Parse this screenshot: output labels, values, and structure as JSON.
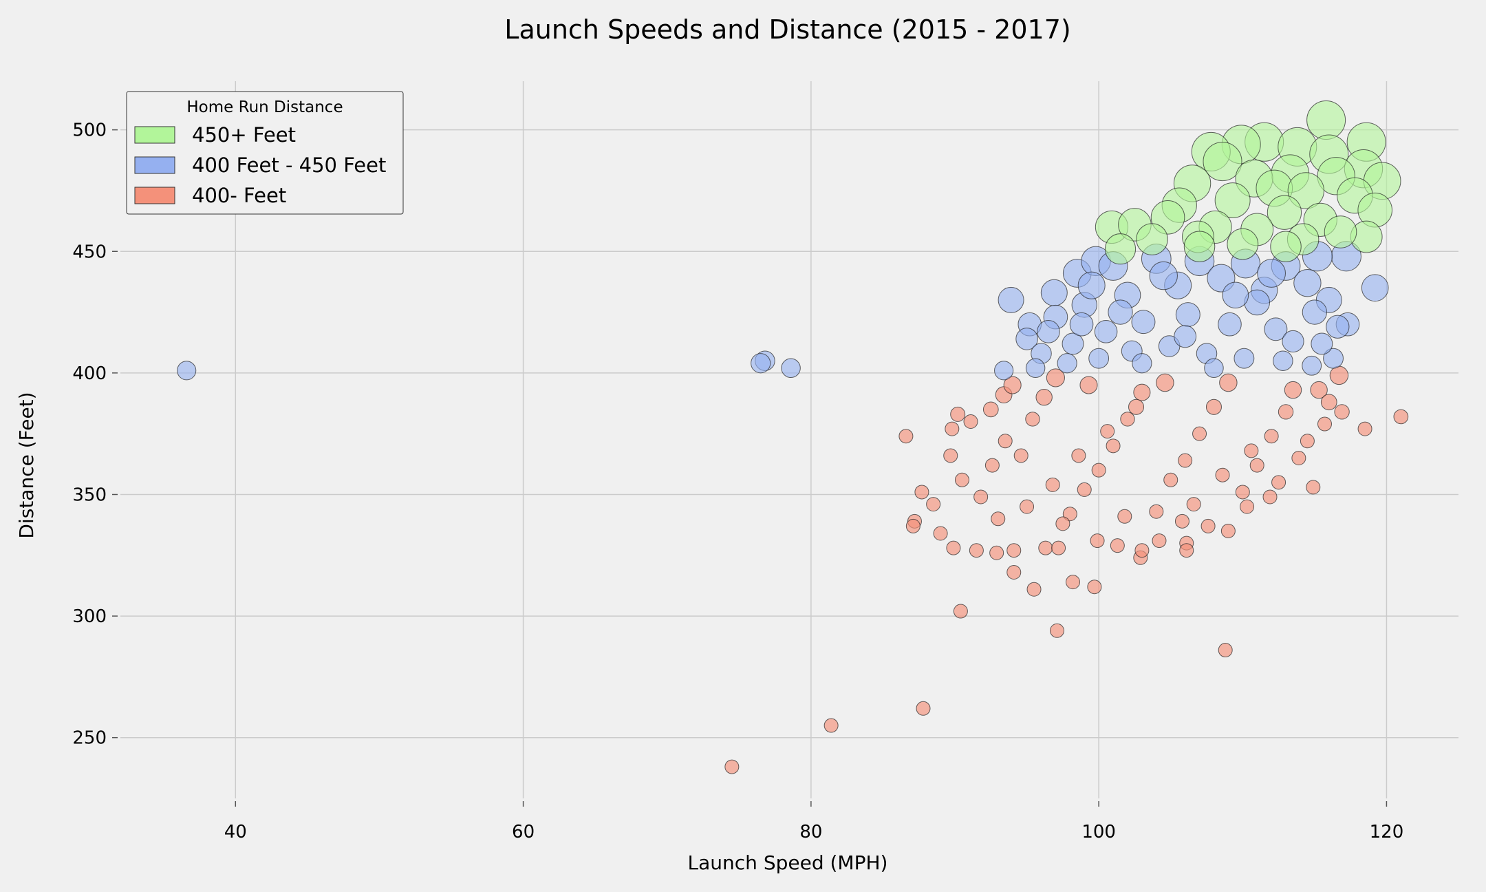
{
  "chart_data": {
    "type": "scatter",
    "title": "Launch Speeds and Distance (2015 - 2017)",
    "xlabel": "Launch Speed (MPH)",
    "ylabel": "Distance (Feet)",
    "xlim": [
      32,
      125
    ],
    "ylim": [
      225,
      520
    ],
    "xticks": [
      40,
      60,
      80,
      100,
      120
    ],
    "yticks": [
      250,
      300,
      350,
      400,
      450,
      500
    ],
    "grid": true,
    "legend": {
      "title": "Home Run Distance",
      "placement": "top-left"
    },
    "series": [
      {
        "name": "450+ Feet",
        "color": "#b2f59a",
        "points": [
          [
            115.8,
            504
          ],
          [
            118.6,
            495
          ],
          [
            111.5,
            495
          ],
          [
            113.8,
            493
          ],
          [
            109.9,
            494
          ],
          [
            107.8,
            491
          ],
          [
            116.0,
            490
          ],
          [
            108.6,
            487
          ],
          [
            118.4,
            484
          ],
          [
            119.7,
            479
          ],
          [
            113.3,
            482
          ],
          [
            116.5,
            481
          ],
          [
            110.8,
            480
          ],
          [
            106.5,
            478
          ],
          [
            112.2,
            476
          ],
          [
            114.4,
            475
          ],
          [
            117.8,
            473
          ],
          [
            109.3,
            471
          ],
          [
            105.6,
            469
          ],
          [
            119.2,
            467
          ],
          [
            112.9,
            466
          ],
          [
            104.8,
            464
          ],
          [
            115.4,
            463
          ],
          [
            100.9,
            460
          ],
          [
            102.5,
            461
          ],
          [
            108.1,
            460
          ],
          [
            111.0,
            459
          ],
          [
            118.6,
            456
          ],
          [
            106.9,
            456
          ],
          [
            114.2,
            455
          ],
          [
            103.7,
            455
          ],
          [
            110.0,
            453
          ],
          [
            113.0,
            452
          ],
          [
            107.0,
            452
          ],
          [
            101.5,
            451
          ],
          [
            116.8,
            458
          ]
        ]
      },
      {
        "name": "400 Feet - 450 Feet",
        "color": "#95b0f0",
        "points": [
          [
            36.6,
            401
          ],
          [
            76.8,
            405
          ],
          [
            76.5,
            404
          ],
          [
            78.6,
            402
          ],
          [
            119.2,
            435
          ],
          [
            117.2,
            448
          ],
          [
            117.3,
            420
          ],
          [
            116.6,
            419
          ],
          [
            116.0,
            430
          ],
          [
            116.3,
            406
          ],
          [
            93.9,
            430
          ],
          [
            95.2,
            420
          ],
          [
            95.0,
            414
          ],
          [
            93.4,
            401
          ],
          [
            96.9,
            433
          ],
          [
            98.5,
            441
          ],
          [
            99.8,
            446
          ],
          [
            101.0,
            444
          ],
          [
            104.0,
            447
          ],
          [
            107.0,
            446
          ],
          [
            110.2,
            445
          ],
          [
            113.0,
            444
          ],
          [
            115.2,
            448
          ],
          [
            97.0,
            423
          ],
          [
            99.0,
            428
          ],
          [
            102.0,
            432
          ],
          [
            105.5,
            436
          ],
          [
            108.5,
            439
          ],
          [
            111.5,
            434
          ],
          [
            114.5,
            437
          ],
          [
            96.0,
            408
          ],
          [
            98.2,
            412
          ],
          [
            100.5,
            417
          ],
          [
            103.1,
            421
          ],
          [
            106.2,
            424
          ],
          [
            109.1,
            420
          ],
          [
            112.3,
            418
          ],
          [
            115.0,
            425
          ],
          [
            95.6,
            402
          ],
          [
            97.8,
            404
          ],
          [
            100.0,
            406
          ],
          [
            102.3,
            409
          ],
          [
            104.9,
            411
          ],
          [
            107.5,
            408
          ],
          [
            110.1,
            406
          ],
          [
            112.8,
            405
          ],
          [
            114.8,
            403
          ],
          [
            101.5,
            425
          ],
          [
            106.0,
            415
          ],
          [
            111.0,
            429
          ],
          [
            104.5,
            440
          ],
          [
            109.5,
            432
          ],
          [
            99.5,
            436
          ],
          [
            113.5,
            413
          ],
          [
            115.5,
            412
          ],
          [
            103.0,
            404
          ],
          [
            108.0,
            402
          ],
          [
            96.5,
            417
          ],
          [
            98.8,
            420
          ],
          [
            112.0,
            441
          ]
        ]
      },
      {
        "name": "400- Feet",
        "color": "#f4917a",
        "points": [
          [
            74.5,
            238
          ],
          [
            81.4,
            255
          ],
          [
            87.8,
            262
          ],
          [
            108.8,
            286
          ],
          [
            97.1,
            294
          ],
          [
            90.4,
            302
          ],
          [
            95.5,
            311
          ],
          [
            99.7,
            312
          ],
          [
            98.2,
            314
          ],
          [
            94.1,
            318
          ],
          [
            86.6,
            374
          ],
          [
            121.0,
            382
          ],
          [
            118.5,
            377
          ],
          [
            116.9,
            384
          ],
          [
            116.7,
            399
          ],
          [
            115.3,
            393
          ],
          [
            114.9,
            353
          ],
          [
            111.9,
            349
          ],
          [
            109.0,
            335
          ],
          [
            106.1,
            330
          ],
          [
            106.1,
            327
          ],
          [
            102.9,
            324
          ],
          [
            87.2,
            339
          ],
          [
            87.1,
            337
          ],
          [
            87.7,
            351
          ],
          [
            89.7,
            366
          ],
          [
            89.8,
            377
          ],
          [
            90.2,
            383
          ],
          [
            91.1,
            380
          ],
          [
            92.5,
            385
          ],
          [
            93.4,
            391
          ],
          [
            94.0,
            395
          ],
          [
            89.9,
            328
          ],
          [
            91.5,
            327
          ],
          [
            92.9,
            326
          ],
          [
            94.1,
            327
          ],
          [
            96.3,
            328
          ],
          [
            97.2,
            328
          ],
          [
            99.9,
            331
          ],
          [
            101.3,
            329
          ],
          [
            103.0,
            327
          ],
          [
            104.2,
            331
          ],
          [
            107.6,
            337
          ],
          [
            110.3,
            345
          ],
          [
            112.5,
            355
          ],
          [
            113.9,
            365
          ],
          [
            114.5,
            372
          ],
          [
            115.7,
            379
          ],
          [
            116.0,
            388
          ],
          [
            113.5,
            393
          ],
          [
            88.5,
            346
          ],
          [
            89.0,
            334
          ],
          [
            90.5,
            356
          ],
          [
            91.8,
            349
          ],
          [
            92.6,
            362
          ],
          [
            93.5,
            372
          ],
          [
            94.6,
            366
          ],
          [
            95.4,
            381
          ],
          [
            96.2,
            390
          ],
          [
            97.0,
            398
          ],
          [
            98.0,
            342
          ],
          [
            99.0,
            352
          ],
          [
            100.0,
            360
          ],
          [
            101.0,
            370
          ],
          [
            102.0,
            381
          ],
          [
            103.0,
            392
          ],
          [
            104.0,
            343
          ],
          [
            105.0,
            356
          ],
          [
            106.0,
            364
          ],
          [
            107.0,
            375
          ],
          [
            108.0,
            386
          ],
          [
            109.0,
            396
          ],
          [
            110.0,
            351
          ],
          [
            111.0,
            362
          ],
          [
            112.0,
            374
          ],
          [
            113.0,
            384
          ],
          [
            96.8,
            354
          ],
          [
            98.6,
            366
          ],
          [
            100.6,
            376
          ],
          [
            102.6,
            386
          ],
          [
            104.6,
            396
          ],
          [
            106.6,
            346
          ],
          [
            108.6,
            358
          ],
          [
            110.6,
            368
          ],
          [
            97.5,
            338
          ],
          [
            101.8,
            341
          ],
          [
            105.8,
            339
          ],
          [
            93.0,
            340
          ],
          [
            95.0,
            345
          ],
          [
            99.3,
            395
          ]
        ]
      }
    ]
  }
}
